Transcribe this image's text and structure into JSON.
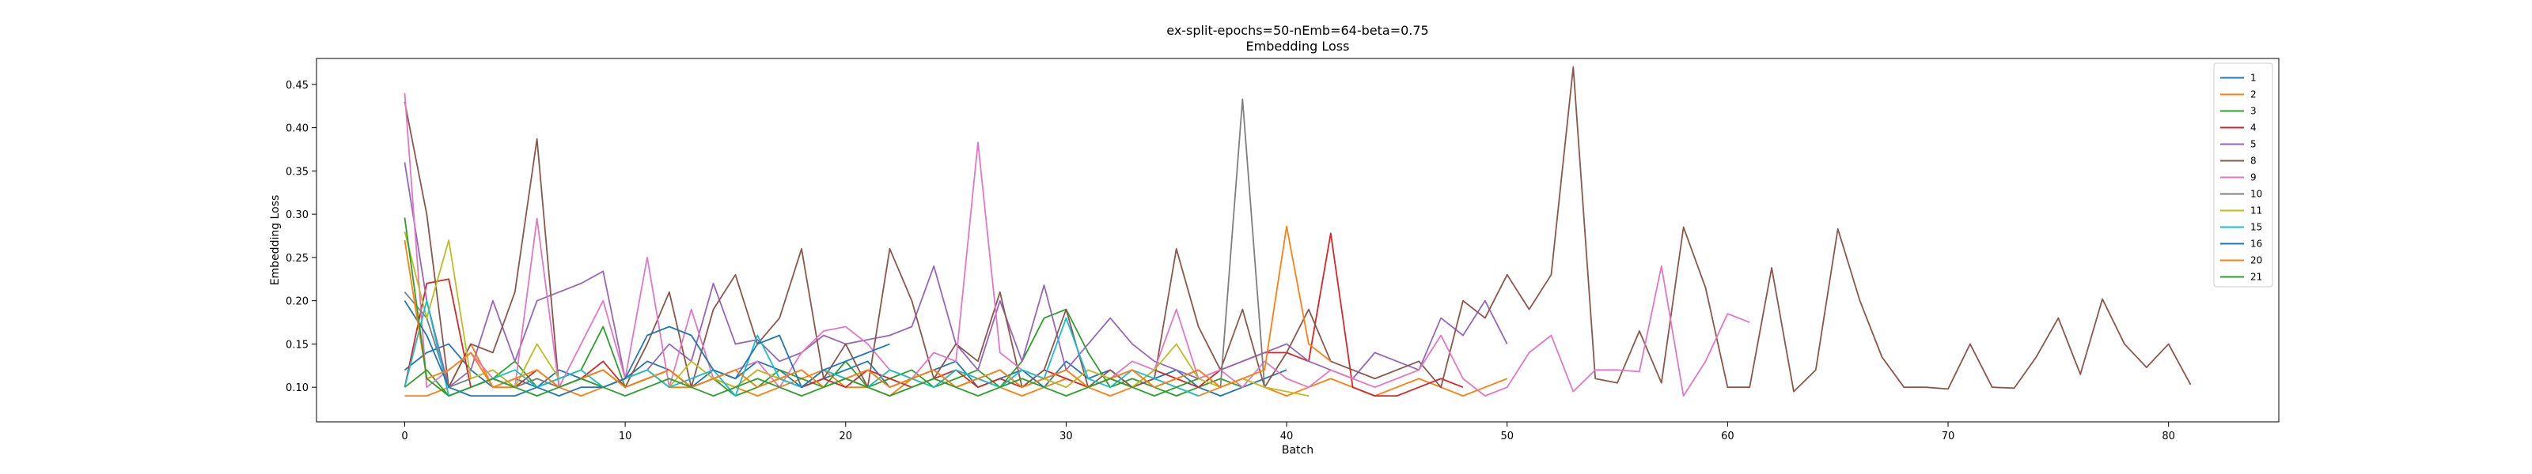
{
  "chart_data": {
    "type": "line",
    "title": "ex-split-epochs=50-nEmb=64-beta=0.75",
    "subtitle": "Embedding Loss",
    "xlabel": "Batch",
    "ylabel": "Embedding Loss",
    "xlim": [
      -4,
      85
    ],
    "ylim": [
      0.06,
      0.48
    ],
    "xticks": [
      0,
      10,
      20,
      30,
      40,
      50,
      60,
      70,
      80
    ],
    "yticks": [
      0.1,
      0.15,
      0.2,
      0.25,
      0.3,
      0.35,
      0.4,
      0.45
    ],
    "xtick_labels": [
      "0",
      "10",
      "20",
      "30",
      "40",
      "50",
      "60",
      "70",
      "80"
    ],
    "ytick_labels": [
      "0.10",
      "0.15",
      "0.20",
      "0.25",
      "0.30",
      "0.35",
      "0.40",
      "0.45"
    ],
    "grid": false,
    "legend_position": "top-right",
    "series": [
      {
        "name": "1",
        "color": "#1f77b4",
        "values": [
          0.12,
          0.14,
          0.15,
          0.12,
          0.1,
          0.11,
          0.1,
          0.12,
          0.11,
          0.1,
          0.11,
          0.13,
          0.12,
          0.1,
          0.12,
          0.11,
          0.13,
          0.12,
          0.1,
          0.11,
          0.12,
          0.13,
          0.1,
          0.11,
          0.12,
          0.13,
          0.1,
          0.11,
          0.12,
          0.1,
          0.13,
          0.11,
          0.12,
          0.1,
          0.11,
          0.12,
          0.1,
          0.09,
          0.1,
          0.11,
          0.12
        ]
      },
      {
        "name": "2",
        "color": "#ff7f0e",
        "values": [
          0.09,
          0.09,
          0.1,
          0.15,
          0.1,
          0.1,
          0.11,
          0.1,
          0.09,
          0.1,
          0.11,
          0.12,
          0.1,
          0.1,
          0.11,
          0.1,
          0.09,
          0.1,
          0.11,
          0.12,
          0.1,
          0.1,
          0.09,
          0.11,
          0.12,
          0.1,
          0.11,
          0.1,
          0.09,
          0.1,
          0.11,
          0.1,
          0.09,
          0.1,
          0.11,
          0.1,
          0.09,
          0.1,
          0.11,
          0.1,
          0.09,
          0.1,
          0.11,
          0.1,
          0.09,
          0.1,
          0.11,
          0.1,
          0.09,
          0.1,
          0.11
        ]
      },
      {
        "name": "3",
        "color": "#2ca02c",
        "values": [
          0.1,
          0.12,
          0.09,
          0.1,
          0.11,
          0.13,
          0.1,
          0.11,
          0.12,
          0.17,
          0.1,
          0.11,
          0.12,
          0.1,
          0.11,
          0.09,
          0.1,
          0.12,
          0.11,
          0.1,
          0.13,
          0.1,
          0.11,
          0.12,
          0.1,
          0.11,
          0.12,
          0.1,
          0.13,
          0.18,
          0.19,
          0.14,
          0.1,
          0.11,
          0.1,
          0.09,
          0.1,
          0.11,
          0.1
        ]
      },
      {
        "name": "4",
        "color": "#d62728",
        "values": [
          0.1,
          0.22,
          0.225,
          0.1,
          0.11,
          0.1,
          0.12,
          0.1,
          0.11,
          0.13,
          0.1,
          0.11,
          0.12,
          0.1,
          0.11,
          0.1,
          0.12,
          0.11,
          0.1,
          0.11,
          0.1,
          0.12,
          0.11,
          0.1,
          0.11,
          0.12,
          0.1,
          0.11,
          0.1,
          0.12,
          0.11,
          0.1,
          0.11,
          0.1,
          0.12,
          0.11,
          0.1,
          0.12,
          0.13,
          0.14,
          0.14,
          0.13,
          0.278,
          0.1,
          0.09,
          0.09,
          0.1,
          0.11,
          0.1
        ]
      },
      {
        "name": "5",
        "color": "#9467bd",
        "values": [
          0.36,
          0.2,
          0.1,
          0.12,
          0.2,
          0.13,
          0.2,
          0.21,
          0.22,
          0.234,
          0.11,
          0.12,
          0.15,
          0.13,
          0.22,
          0.15,
          0.155,
          0.13,
          0.14,
          0.16,
          0.15,
          0.155,
          0.16,
          0.17,
          0.24,
          0.15,
          0.12,
          0.2,
          0.13,
          0.218,
          0.12,
          0.15,
          0.18,
          0.15,
          0.13,
          0.12,
          0.11,
          0.12,
          0.13,
          0.14,
          0.15,
          0.13,
          0.12,
          0.11,
          0.14,
          0.13,
          0.12,
          0.18,
          0.16,
          0.2,
          0.15
        ]
      },
      {
        "name": "8",
        "color": "#8c564b",
        "values": [
          0.43,
          0.3,
          0.1,
          0.15,
          0.14,
          0.21,
          0.387,
          0.1,
          0.11,
          0.12,
          0.1,
          0.15,
          0.21,
          0.1,
          0.19,
          0.23,
          0.15,
          0.18,
          0.26,
          0.11,
          0.15,
          0.1,
          0.26,
          0.2,
          0.11,
          0.15,
          0.13,
          0.21,
          0.1,
          0.12,
          0.19,
          0.1,
          0.12,
          0.1,
          0.11,
          0.26,
          0.17,
          0.12,
          0.19,
          0.1,
          0.14,
          0.19,
          0.13,
          0.12,
          0.11,
          0.12,
          0.13,
          0.1,
          0.2,
          0.18,
          0.23,
          0.19,
          0.23,
          0.47,
          0.11,
          0.105,
          0.165,
          0.105,
          0.285,
          0.215,
          0.1,
          0.1,
          0.238,
          0.095,
          0.12,
          0.283,
          0.2,
          0.135,
          0.1,
          0.1,
          0.098,
          0.15,
          0.1,
          0.099,
          0.135,
          0.18,
          0.115,
          0.202,
          0.15,
          0.123,
          0.15,
          0.103
        ]
      },
      {
        "name": "9",
        "color": "#e377c2",
        "values": [
          0.44,
          0.1,
          0.12,
          0.14,
          0.11,
          0.1,
          0.295,
          0.1,
          0.15,
          0.2,
          0.11,
          0.25,
          0.1,
          0.19,
          0.11,
          0.12,
          0.13,
          0.1,
          0.14,
          0.165,
          0.17,
          0.15,
          0.12,
          0.11,
          0.14,
          0.13,
          0.383,
          0.14,
          0.12,
          0.11,
          0.1,
          0.12,
          0.11,
          0.13,
          0.12,
          0.19,
          0.11,
          0.12,
          0.1,
          0.13,
          0.11,
          0.1,
          0.12,
          0.11,
          0.1,
          0.11,
          0.12,
          0.16,
          0.11,
          0.09,
          0.1,
          0.14,
          0.16,
          0.095,
          0.12,
          0.12,
          0.118,
          0.24,
          0.09,
          0.13,
          0.185,
          0.175
        ]
      },
      {
        "name": "10",
        "color": "#7f7f7f",
        "values": [
          0.21,
          0.18,
          0.1,
          0.11,
          0.12,
          0.1,
          0.11,
          0.1,
          0.11,
          0.12,
          0.1,
          0.11,
          0.12,
          0.1,
          0.11,
          0.12,
          0.1,
          0.11,
          0.12,
          0.1,
          0.11,
          0.12,
          0.1,
          0.11,
          0.12,
          0.1,
          0.11,
          0.12,
          0.1,
          0.11,
          0.12,
          0.1,
          0.11,
          0.12,
          0.1,
          0.11,
          0.12,
          0.1,
          0.433,
          0.1
        ]
      },
      {
        "name": "11",
        "color": "#bcbd22",
        "values": [
          0.28,
          0.18,
          0.27,
          0.11,
          0.12,
          0.1,
          0.15,
          0.11,
          0.12,
          0.1,
          0.11,
          0.12,
          0.1,
          0.13,
          0.11,
          0.1,
          0.12,
          0.11,
          0.1,
          0.12,
          0.11,
          0.1,
          0.12,
          0.11,
          0.1,
          0.12,
          0.11,
          0.1,
          0.12,
          0.11,
          0.1,
          0.12,
          0.11,
          0.1,
          0.12,
          0.15,
          0.11,
          0.1,
          0.11,
          0.1,
          0.095,
          0.09
        ]
      },
      {
        "name": "15",
        "color": "#17becf",
        "values": [
          0.1,
          0.2,
          0.09,
          0.1,
          0.11,
          0.12,
          0.1,
          0.11,
          0.12,
          0.1,
          0.11,
          0.12,
          0.1,
          0.11,
          0.12,
          0.09,
          0.16,
          0.11,
          0.1,
          0.12,
          0.11,
          0.1,
          0.12,
          0.11,
          0.1,
          0.12,
          0.11,
          0.1,
          0.12,
          0.11,
          0.18,
          0.11,
          0.1,
          0.12,
          0.11,
          0.1,
          0.09
        ]
      },
      {
        "name": "16",
        "color": "#1f77b4",
        "values": [
          0.2,
          0.16,
          0.1,
          0.09,
          0.09,
          0.09,
          0.1,
          0.09,
          0.1,
          0.1,
          0.11,
          0.16,
          0.17,
          0.16,
          0.12,
          0.11,
          0.15,
          0.16,
          0.1,
          0.12,
          0.13,
          0.14,
          0.15
        ]
      },
      {
        "name": "20",
        "color": "#ff7f0e",
        "values": [
          0.27,
          0.11,
          0.12,
          0.14,
          0.1,
          0.11,
          0.12,
          0.1,
          0.11,
          0.12,
          0.1,
          0.11,
          0.12,
          0.1,
          0.11,
          0.12,
          0.1,
          0.11,
          0.12,
          0.1,
          0.11,
          0.12,
          0.1,
          0.11,
          0.12,
          0.1,
          0.11,
          0.12,
          0.1,
          0.11,
          0.12,
          0.1,
          0.11,
          0.12,
          0.1,
          0.11,
          0.12,
          0.1,
          0.11,
          0.12,
          0.286,
          0.15,
          0.13
        ]
      },
      {
        "name": "21",
        "color": "#2ca02c",
        "values": [
          0.296,
          0.11,
          0.09,
          0.1,
          0.11,
          0.1,
          0.09,
          0.1,
          0.11,
          0.1,
          0.09,
          0.1,
          0.11,
          0.1,
          0.09,
          0.1,
          0.11,
          0.1,
          0.09,
          0.1,
          0.11,
          0.1,
          0.09,
          0.1,
          0.11,
          0.1,
          0.09,
          0.1,
          0.11,
          0.1,
          0.09,
          0.1,
          0.11,
          0.1,
          0.09,
          0.1,
          0.11
        ]
      }
    ]
  }
}
